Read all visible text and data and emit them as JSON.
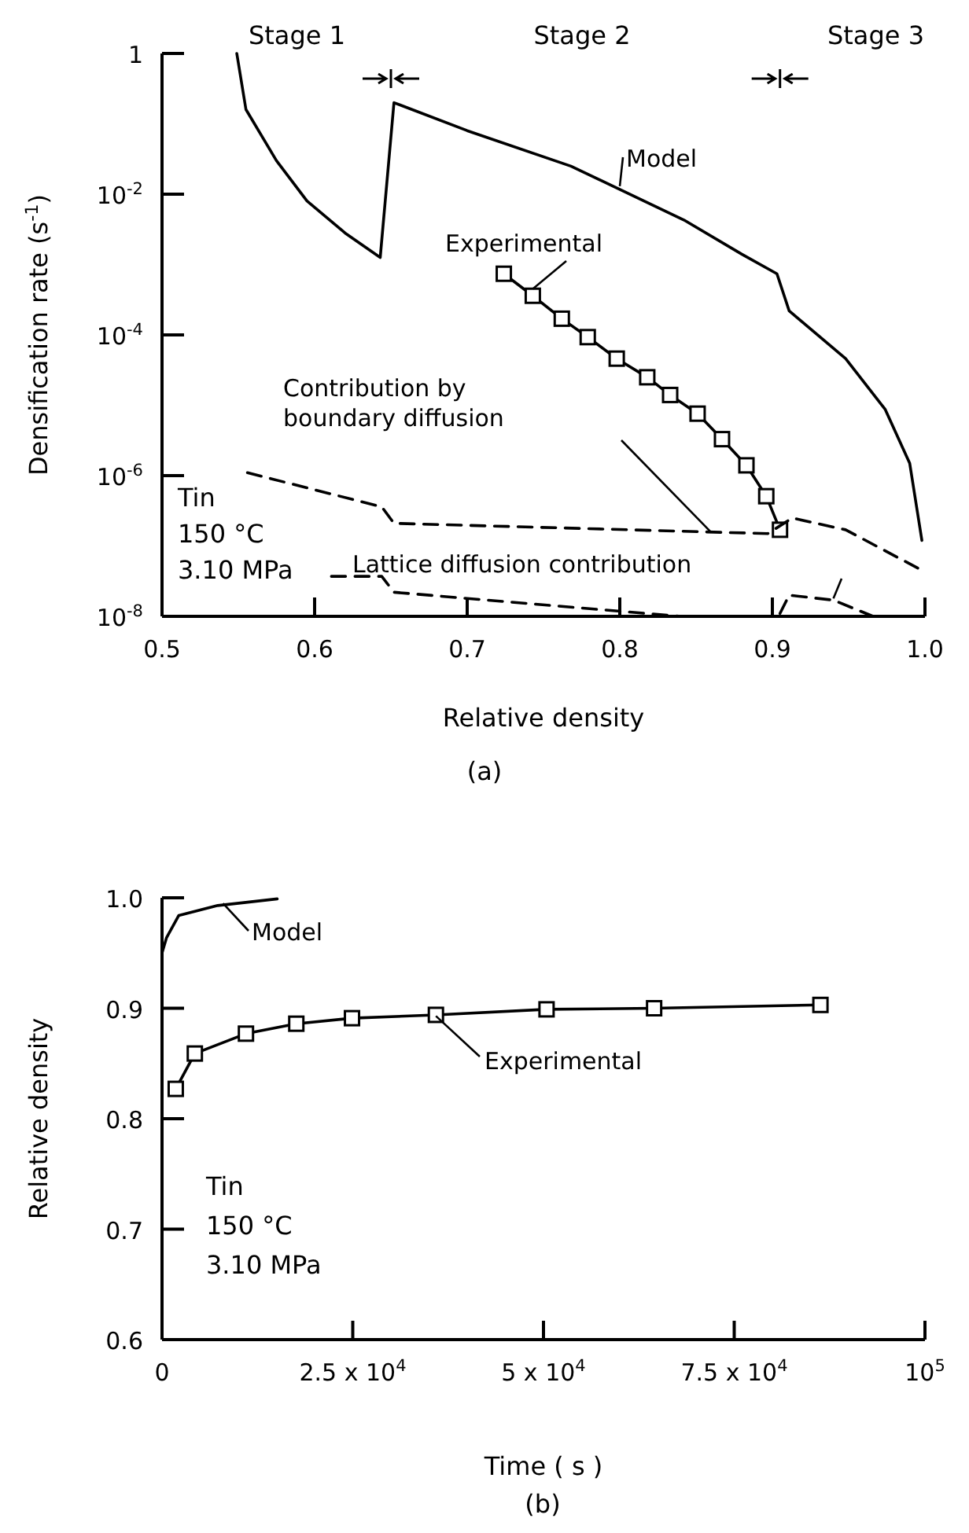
{
  "chart_data": [
    {
      "type": "line",
      "xlabel": "Relative density",
      "ylabel": "Densification rate (s$^{-1}$)",
      "log": "y",
      "xlim": [
        0.5,
        1.0
      ],
      "xticks": [
        {
          "value": 0.5,
          "label": "0.5"
        },
        {
          "value": 0.6,
          "label": "0.6"
        },
        {
          "value": 0.7,
          "label": "0.7"
        },
        {
          "value": 0.8,
          "label": "0.8"
        },
        {
          "value": 0.9,
          "label": "0.9"
        },
        {
          "value": 1.0,
          "label": "1.0"
        }
      ],
      "ylim": [
        1e-08,
        1
      ],
      "yticks": [
        {
          "value": 1,
          "label": "1"
        },
        {
          "value": 0.01,
          "label": "10$^{-2}$"
        },
        {
          "value": 0.0001,
          "label": "10$^{-4}$"
        },
        {
          "value": 1e-06,
          "label": "10$^{-6}$"
        },
        {
          "value": 1e-08,
          "label": "10$^{-8}$"
        }
      ],
      "grid": false,
      "series": [
        {
          "name": "Model",
          "color": "#000000",
          "marker": "none",
          "line_style": "solid",
          "x": [
            0.549,
            0.555,
            0.575,
            0.595,
            0.62,
            0.643,
            0.652,
            0.7,
            0.768,
            0.842,
            0.88,
            0.903,
            0.911,
            0.948,
            0.974,
            0.99,
            0.998
          ],
          "values": [
            1,
            0.16,
            0.03,
            0.008,
            0.0028,
            0.00126,
            0.2,
            0.08,
            0.025,
            0.0043,
            0.0014,
            0.00074,
            0.00022,
            4.6e-05,
            8.7e-06,
            1.5e-06,
            1.2e-07
          ]
        },
        {
          "name": "Experimental",
          "color": "#000000",
          "marker": "square",
          "line_style": "solid",
          "x": [
            0.724,
            0.743,
            0.762,
            0.779,
            0.798,
            0.818,
            0.833,
            0.851,
            0.867,
            0.883,
            0.896,
            0.905
          ],
          "values": [
            0.00074,
            0.00036,
            0.00017,
            9.3e-05,
            4.6e-05,
            2.5e-05,
            1.4e-05,
            7.6e-06,
            3.3e-06,
            1.4e-06,
            5.1e-07,
            1.7e-07
          ]
        },
        {
          "name": "Contribution by boundary diffusion",
          "color": "#000000",
          "marker": "none",
          "line_style": "dashed",
          "x": [
            0.556,
            0.644,
            0.652,
            0.897,
            0.913,
            0.948,
            0.999
          ],
          "values": [
            1.1e-06,
            3.6e-07,
            2.1e-07,
            1.5e-07,
            2.5e-07,
            1.7e-07,
            4.4e-08
          ]
        },
        {
          "name": "Lattice diffusion contribution",
          "color": "#000000",
          "marker": "none",
          "line_style": "dashed",
          "x": [
            0.611,
            0.644,
            0.652,
            0.84,
            0.87,
            0.905,
            0.911,
            0.94,
            0.966
          ],
          "values": [
            3.7e-08,
            3.7e-08,
            2.2e-08,
            1e-08,
            null,
            1.1e-08,
            2e-08,
            1.7e-08,
            1e-08
          ]
        }
      ],
      "annotations": [
        "Stage 1",
        "Stage 2",
        "Stage 3",
        "Tin",
        "150 °C",
        "3.10 MPa",
        "(a)"
      ]
    },
    {
      "type": "line",
      "xlabel": "Time ( s )",
      "ylabel": "Relative density",
      "xlim": [
        0,
        100000
      ],
      "xticks": [
        {
          "value": 0,
          "label": "0"
        },
        {
          "value": 25000,
          "label": "2.5 x 10$^{4}$"
        },
        {
          "value": 50000,
          "label": "5 x 10$^{4}$"
        },
        {
          "value": 75000,
          "label": "7.5 x 10$^{4}$"
        },
        {
          "value": 100000,
          "label": "10$^{5}$"
        }
      ],
      "ylim": [
        0.6,
        1.0
      ],
      "yticks": [
        {
          "value": 0.6,
          "label": "0.6"
        },
        {
          "value": 0.7,
          "label": "0.7"
        },
        {
          "value": 0.8,
          "label": "0.8"
        },
        {
          "value": 0.9,
          "label": "0.9"
        },
        {
          "value": 1.0,
          "label": "1.0"
        }
      ],
      "grid": false,
      "series": [
        {
          "name": "Model",
          "color": "#000000",
          "marker": "none",
          "line_style": "solid",
          "x": [
            0,
            600,
            2200,
            7300,
            15100
          ],
          "values": [
            0.95,
            0.964,
            0.984,
            0.993,
            0.999
          ]
        },
        {
          "name": "Experimental",
          "color": "#000000",
          "marker": "square",
          "line_style": "solid",
          "x": [
            1800,
            4300,
            11000,
            17600,
            24900,
            35900,
            50400,
            64500,
            86300
          ],
          "values": [
            0.827,
            0.859,
            0.877,
            0.886,
            0.891,
            0.894,
            0.899,
            0.9,
            0.903
          ]
        }
      ],
      "annotations": [
        "Tin",
        "150 °C",
        "3.10 MPa",
        "(b)"
      ]
    }
  ]
}
